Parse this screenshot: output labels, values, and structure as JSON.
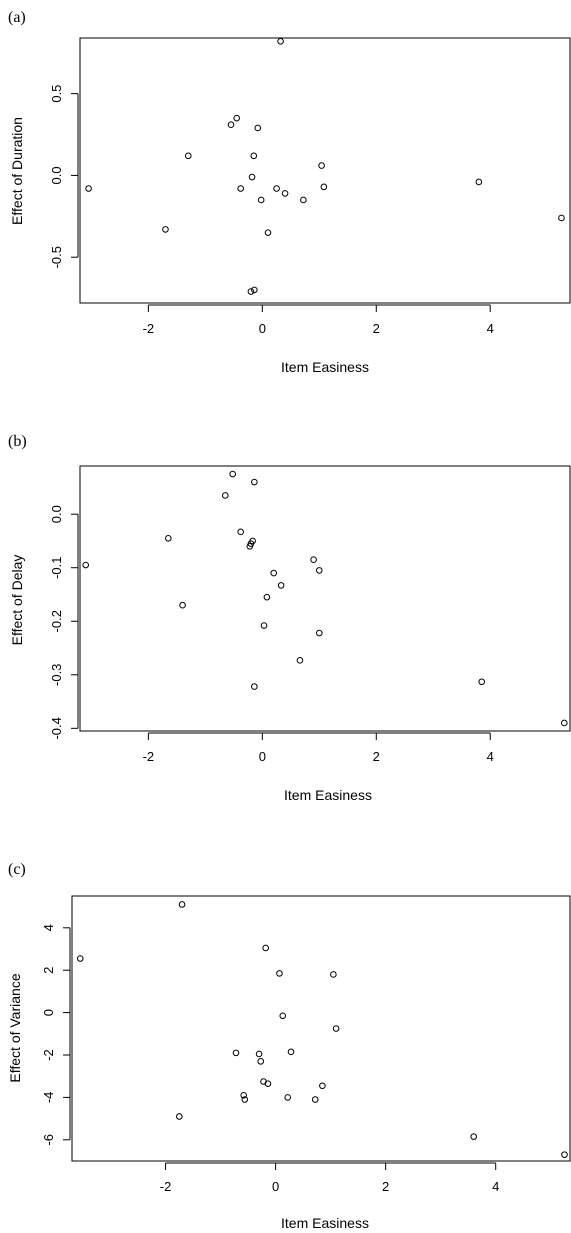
{
  "chart_data": [
    {
      "type": "scatter",
      "panel_label": "(a)",
      "xlabel": "Item Easiness",
      "ylabel": "Effect of Duration",
      "xlim": [
        -3.2,
        5.4
      ],
      "ylim": [
        -0.78,
        0.84
      ],
      "xticks": [
        -2,
        0,
        2,
        4
      ],
      "yticks": [
        -0.5,
        0.0,
        0.5
      ],
      "ytick_labels": [
        "-0.5",
        "0.0",
        "0.5"
      ],
      "grid": false,
      "points": [
        {
          "x": -3.05,
          "y": -0.08
        },
        {
          "x": -1.7,
          "y": -0.33
        },
        {
          "x": -1.3,
          "y": 0.12
        },
        {
          "x": -0.55,
          "y": 0.31
        },
        {
          "x": -0.45,
          "y": 0.35
        },
        {
          "x": -0.38,
          "y": -0.08
        },
        {
          "x": -0.18,
          "y": -0.01
        },
        {
          "x": -0.15,
          "y": 0.12
        },
        {
          "x": -0.08,
          "y": 0.29
        },
        {
          "x": -0.2,
          "y": -0.71
        },
        {
          "x": -0.14,
          "y": -0.7
        },
        {
          "x": -0.02,
          "y": -0.15
        },
        {
          "x": 0.1,
          "y": -0.35
        },
        {
          "x": 0.25,
          "y": -0.08
        },
        {
          "x": 0.32,
          "y": 0.82
        },
        {
          "x": 0.4,
          "y": -0.11
        },
        {
          "x": 0.72,
          "y": -0.15
        },
        {
          "x": 1.04,
          "y": 0.06
        },
        {
          "x": 1.08,
          "y": -0.07
        },
        {
          "x": 3.8,
          "y": -0.04
        },
        {
          "x": 5.25,
          "y": -0.26
        }
      ]
    },
    {
      "type": "scatter",
      "panel_label": "(b)",
      "xlabel": "Item Easiness",
      "ylabel": "Effect of Delay",
      "xlim": [
        -3.2,
        5.4
      ],
      "ylim": [
        -0.405,
        0.09
      ],
      "xticks": [
        -2,
        0,
        2,
        4
      ],
      "yticks": [
        -0.4,
        -0.3,
        -0.2,
        -0.1,
        0.0
      ],
      "ytick_labels": [
        "-0.4",
        "-0.3",
        "-0.2",
        "-0.1",
        "0.0"
      ],
      "grid": false,
      "points": [
        {
          "x": -3.1,
          "y": -0.095
        },
        {
          "x": -1.65,
          "y": -0.045
        },
        {
          "x": -1.4,
          "y": -0.17
        },
        {
          "x": -0.65,
          "y": 0.035
        },
        {
          "x": -0.52,
          "y": 0.075
        },
        {
          "x": -0.38,
          "y": -0.033
        },
        {
          "x": -0.22,
          "y": -0.06
        },
        {
          "x": -0.2,
          "y": -0.055
        },
        {
          "x": -0.17,
          "y": -0.05
        },
        {
          "x": -0.14,
          "y": 0.06
        },
        {
          "x": -0.14,
          "y": -0.322
        },
        {
          "x": 0.03,
          "y": -0.208
        },
        {
          "x": 0.08,
          "y": -0.155
        },
        {
          "x": 0.2,
          "y": -0.11
        },
        {
          "x": 0.33,
          "y": -0.133
        },
        {
          "x": 0.66,
          "y": -0.273
        },
        {
          "x": 0.9,
          "y": -0.085
        },
        {
          "x": 1.0,
          "y": -0.105
        },
        {
          "x": 1.0,
          "y": -0.222
        },
        {
          "x": 3.85,
          "y": -0.313
        },
        {
          "x": 5.3,
          "y": -0.39
        }
      ]
    },
    {
      "type": "scatter",
      "panel_label": "(c)",
      "xlabel": "Item Easiness",
      "ylabel": "Effect of Variance",
      "xlim": [
        -3.7,
        5.35
      ],
      "ylim": [
        -7.0,
        5.5
      ],
      "xticks": [
        -2,
        0,
        2,
        4
      ],
      "yticks": [
        -6,
        -4,
        -2,
        0,
        2,
        4
      ],
      "ytick_labels": [
        "-6",
        "-4",
        "-2",
        "0",
        "2",
        "4"
      ],
      "grid": false,
      "points": [
        {
          "x": -3.55,
          "y": 2.55
        },
        {
          "x": -1.7,
          "y": 5.1
        },
        {
          "x": -1.75,
          "y": -4.9
        },
        {
          "x": -0.72,
          "y": -1.9
        },
        {
          "x": -0.58,
          "y": -3.9
        },
        {
          "x": -0.56,
          "y": -4.1
        },
        {
          "x": -0.3,
          "y": -1.95
        },
        {
          "x": -0.27,
          "y": -2.3
        },
        {
          "x": -0.22,
          "y": -3.25
        },
        {
          "x": -0.18,
          "y": 3.05
        },
        {
          "x": -0.14,
          "y": -3.35
        },
        {
          "x": 0.07,
          "y": 1.85
        },
        {
          "x": 0.13,
          "y": -0.15
        },
        {
          "x": 0.22,
          "y": -4.0
        },
        {
          "x": 0.28,
          "y": -1.85
        },
        {
          "x": 0.72,
          "y": -4.1
        },
        {
          "x": 0.85,
          "y": -3.45
        },
        {
          "x": 1.05,
          "y": 1.8
        },
        {
          "x": 1.1,
          "y": -0.75
        },
        {
          "x": 3.6,
          "y": -5.85
        },
        {
          "x": 5.25,
          "y": -6.7
        }
      ]
    }
  ]
}
